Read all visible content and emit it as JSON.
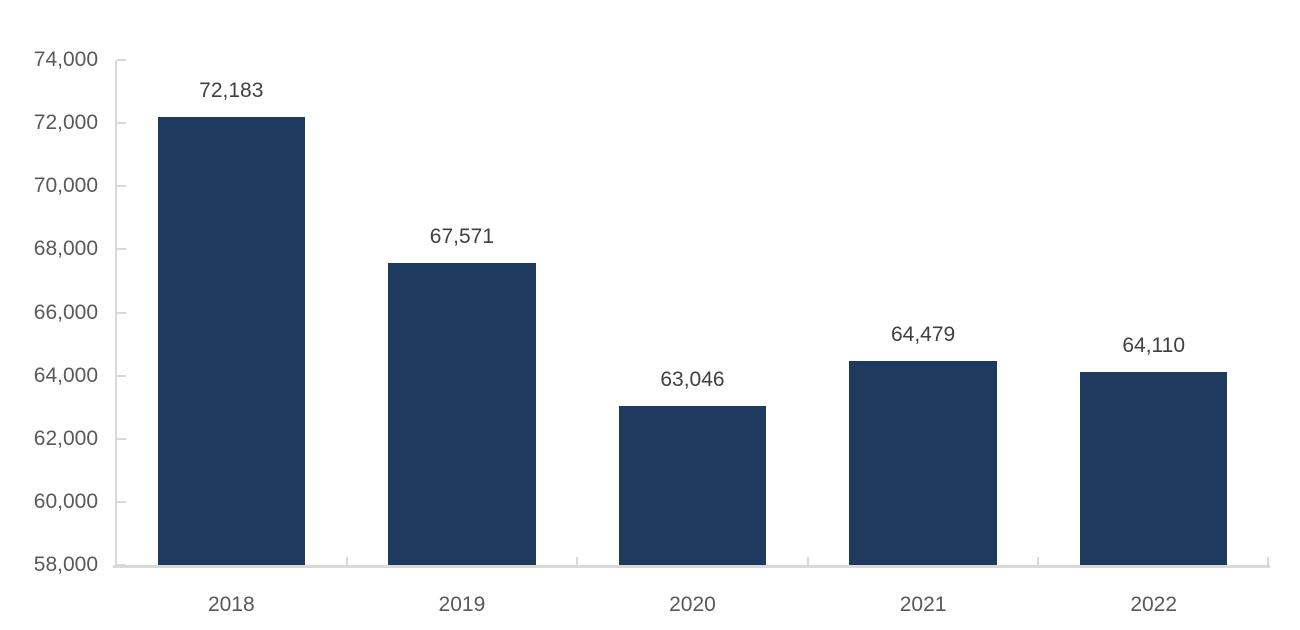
{
  "chart_data": {
    "type": "bar",
    "title": "",
    "xlabel": "",
    "ylabel": "",
    "categories": [
      "2018",
      "2019",
      "2020",
      "2021",
      "2022"
    ],
    "values": [
      72183,
      67571,
      63046,
      64479,
      64110
    ],
    "value_labels": [
      "72,183",
      "67,571",
      "63,046",
      "64,479",
      "64,110"
    ],
    "ylim": [
      58000,
      74000
    ],
    "ytick_step": 2000,
    "yticks": [
      {
        "value": 58000,
        "label": "58,000"
      },
      {
        "value": 60000,
        "label": "60,000"
      },
      {
        "value": 62000,
        "label": "62,000"
      },
      {
        "value": 64000,
        "label": "64,000"
      },
      {
        "value": 66000,
        "label": "66,000"
      },
      {
        "value": 68000,
        "label": "68,000"
      },
      {
        "value": 70000,
        "label": "70,000"
      },
      {
        "value": 72000,
        "label": "72,000"
      },
      {
        "value": 74000,
        "label": "74,000"
      }
    ],
    "grid": false,
    "legend": "none",
    "data_labels": true,
    "colors": {
      "bar": "#1F3A5F",
      "axis_line": "#D9D9D9",
      "axis_label_text": "#595959",
      "data_label_text": "#404040",
      "background": "#FFFFFF"
    }
  }
}
